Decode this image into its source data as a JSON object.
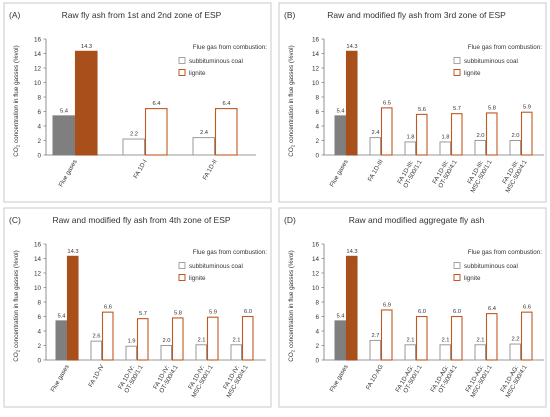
{
  "colors": {
    "subbituminous_fill": "#7f7f7f",
    "lignite_fill": "#a84f1c",
    "subbituminous_outline": "#9a9a9a",
    "lignite_outline": "#c0581f",
    "panel_border": "#c8c8c8",
    "axis": "#777777",
    "text": "#333333"
  },
  "chart_data": [
    {
      "panel": "(A)",
      "type": "bar",
      "title": "Raw fly ash from 1st and 2nd zone of ESP",
      "ylabel": "CO2 concentration in flue gasses (%vol)",
      "ylim": [
        0,
        16
      ],
      "yticks": [
        0,
        2,
        4,
        6,
        8,
        10,
        12,
        14,
        16
      ],
      "legend_title": "Flue gas from combustion:",
      "legend_position": "top-right",
      "categories": [
        "Flue gases",
        "FA 1D-I",
        "FA 1D-II"
      ],
      "series": [
        {
          "name": "subbituminous coal",
          "values": [
            5.4,
            2.2,
            2.4
          ]
        },
        {
          "name": "lignite",
          "values": [
            14.3,
            6.4,
            6.4
          ]
        }
      ]
    },
    {
      "panel": "(B)",
      "type": "bar",
      "title": "Raw and modified fly ash from 3rd zone of ESP",
      "ylabel": "CO2 concentration in flue gasses (%vol)",
      "ylim": [
        0,
        16
      ],
      "yticks": [
        0,
        2,
        4,
        6,
        8,
        10,
        12,
        14,
        16
      ],
      "legend_title": "Flue gas from combustion:",
      "legend_position": "top-right",
      "categories": [
        "Flue gases",
        "FA 1D-III",
        "FA 1D-III: OT-500/1:1",
        "FA 1D-III: OT-500/4:1",
        "FA 1D-III: MSC-500/1:1",
        "FA 1D-III: MSC-500/4:1"
      ],
      "series": [
        {
          "name": "subbituminous coal",
          "values": [
            5.4,
            2.4,
            1.8,
            1.8,
            2.0,
            2.0
          ]
        },
        {
          "name": "lignite",
          "values": [
            14.3,
            6.5,
            5.6,
            5.7,
            5.8,
            5.9
          ]
        }
      ]
    },
    {
      "panel": "(C)",
      "type": "bar",
      "title": "Raw and modified fly ash from 4th zone of ESP",
      "ylabel": "CO2 concentration in flue gasses (%vol)",
      "ylim": [
        0,
        16
      ],
      "yticks": [
        0,
        2,
        4,
        6,
        8,
        10,
        12,
        14,
        16
      ],
      "legend_title": "Flue gas from combustion:",
      "legend_position": "top-right",
      "categories": [
        "Flue gases",
        "FA 1D-IV",
        "FA 1D-IV: OT-500/1:1",
        "FA 1D-IV: OT-500/4:1",
        "FA 1D-IV: MSC-500/1:1",
        "FA 1D-IV: MSC-500/4:1"
      ],
      "series": [
        {
          "name": "subbituminous coal",
          "values": [
            5.4,
            2.6,
            1.9,
            2.0,
            2.1,
            2.1
          ]
        },
        {
          "name": "lignite",
          "values": [
            14.3,
            6.6,
            5.7,
            5.8,
            5.9,
            6.0
          ]
        }
      ]
    },
    {
      "panel": "(D)",
      "type": "bar",
      "title": "Raw and modified aggregate fly ash",
      "ylabel": "CO2 concentration in flue gasses (%vol)",
      "ylim": [
        0,
        16
      ],
      "yticks": [
        0,
        2,
        4,
        6,
        8,
        10,
        12,
        14,
        16
      ],
      "legend_title": "Flue gas from combustion:",
      "legend_position": "top-right",
      "categories": [
        "Flue gases",
        "FA 1D-AG",
        "FA 1D-AG: OT-500/1:1",
        "FA 1D-AG: OT-500/4:1",
        "FA 1D-AG: MSC-500/1:1",
        "FA 1D-AG: MSC-500/4:1"
      ],
      "series": [
        {
          "name": "subbituminous coal",
          "values": [
            5.4,
            2.7,
            2.1,
            2.1,
            2.1,
            2.2
          ]
        },
        {
          "name": "lignite",
          "values": [
            14.3,
            6.9,
            6.0,
            6.0,
            6.4,
            6.6
          ]
        }
      ]
    }
  ]
}
